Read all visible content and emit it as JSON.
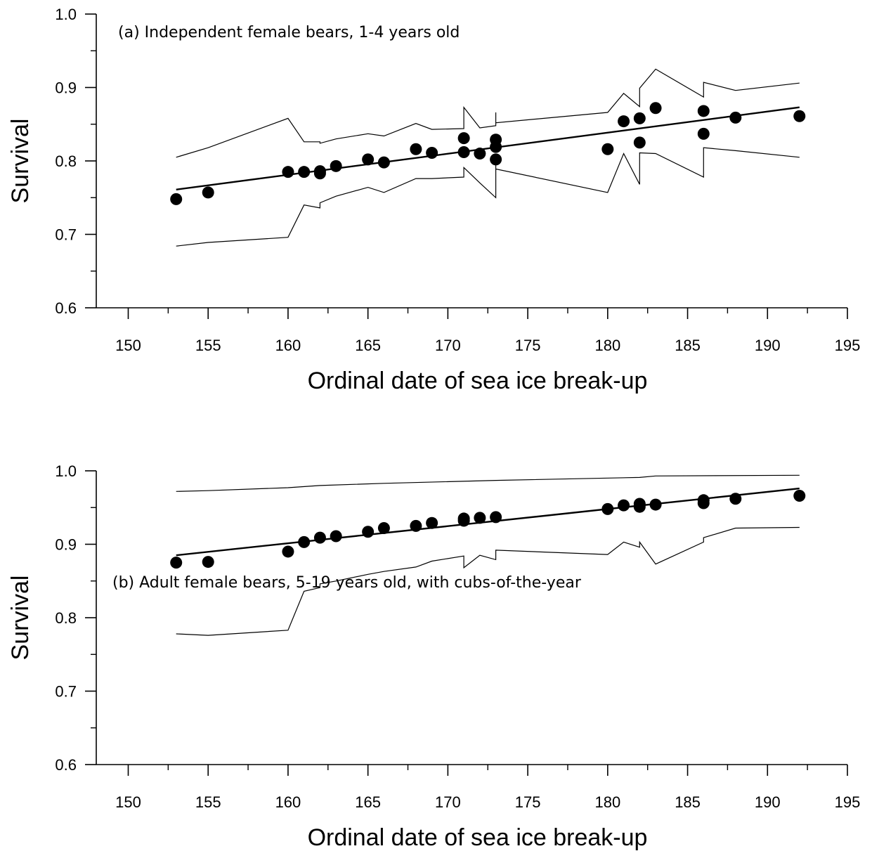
{
  "chart_data": [
    {
      "type": "scatter",
      "title": "(a) Independent female bears, 1-4 years old",
      "xlabel": "Ordinal date of sea ice break-up",
      "ylabel": "Survival",
      "xlim": [
        148,
        195
      ],
      "ylim": [
        0.6,
        1.0
      ],
      "xticks": [
        150,
        155,
        160,
        165,
        170,
        175,
        180,
        185,
        190,
        195
      ],
      "yticks": [
        "0.6",
        "0.7",
        "0.8",
        "0.9",
        "1.0"
      ],
      "grid": false,
      "points": {
        "x": [
          153,
          155,
          160,
          161,
          162,
          162,
          163,
          165,
          166,
          168,
          169,
          171,
          171,
          172,
          173,
          173,
          173,
          180,
          181,
          182,
          182,
          183,
          186,
          186,
          188,
          192
        ],
        "y": [
          0.748,
          0.757,
          0.785,
          0.785,
          0.786,
          0.783,
          0.793,
          0.802,
          0.798,
          0.816,
          0.811,
          0.831,
          0.812,
          0.81,
          0.829,
          0.819,
          0.802,
          0.816,
          0.854,
          0.858,
          0.825,
          0.872,
          0.868,
          0.837,
          0.859,
          0.861
        ]
      },
      "fit_line": {
        "x": [
          153,
          192
        ],
        "y": [
          0.761,
          0.873
        ]
      },
      "upper_bound": {
        "x": [
          153,
          155,
          160,
          161,
          162,
          162,
          163,
          165,
          166,
          168,
          169,
          171,
          171,
          172,
          173,
          173,
          173,
          180,
          181,
          182,
          182,
          183,
          186,
          186,
          188,
          192
        ],
        "y": [
          0.805,
          0.818,
          0.858,
          0.826,
          0.826,
          0.824,
          0.83,
          0.837,
          0.834,
          0.851,
          0.843,
          0.844,
          0.873,
          0.845,
          0.848,
          0.866,
          0.852,
          0.866,
          0.892,
          0.874,
          0.899,
          0.925,
          0.887,
          0.907,
          0.896,
          0.906
        ]
      },
      "lower_bound": {
        "x": [
          153,
          155,
          160,
          161,
          162,
          162,
          163,
          165,
          166,
          168,
          169,
          171,
          171,
          172,
          173,
          173,
          173,
          180,
          181,
          182,
          182,
          183,
          186,
          186,
          188,
          192
        ],
        "y": [
          0.684,
          0.689,
          0.696,
          0.74,
          0.736,
          0.743,
          0.752,
          0.764,
          0.757,
          0.776,
          0.776,
          0.778,
          0.791,
          0.77,
          0.75,
          0.796,
          0.789,
          0.757,
          0.81,
          0.768,
          0.811,
          0.81,
          0.778,
          0.818,
          0.814,
          0.805
        ]
      }
    },
    {
      "type": "scatter",
      "title": "(b) Adult female bears, 5-19 years old, with cubs-of-the-year",
      "xlabel": "Ordinal date of sea ice break-up",
      "ylabel": "Survival",
      "xlim": [
        148,
        195
      ],
      "ylim": [
        0.6,
        1.0
      ],
      "xticks": [
        150,
        155,
        160,
        165,
        170,
        175,
        180,
        185,
        190,
        195
      ],
      "yticks": [
        "0.6",
        "0.7",
        "0.8",
        "0.9",
        "1.0"
      ],
      "grid": false,
      "points": {
        "x": [
          153,
          155,
          160,
          161,
          162,
          163,
          165,
          166,
          168,
          169,
          171,
          171,
          172,
          173,
          180,
          181,
          182,
          182,
          183,
          186,
          186,
          188,
          192
        ],
        "y": [
          0.875,
          0.876,
          0.89,
          0.903,
          0.909,
          0.911,
          0.917,
          0.922,
          0.925,
          0.929,
          0.932,
          0.935,
          0.936,
          0.937,
          0.948,
          0.953,
          0.951,
          0.955,
          0.954,
          0.956,
          0.96,
          0.962,
          0.966
        ]
      },
      "fit_line": {
        "x": [
          153,
          192
        ],
        "y": [
          0.885,
          0.976
        ]
      },
      "upper_bound": {
        "x": [
          153,
          155,
          160,
          162,
          166,
          173,
          182,
          183,
          192
        ],
        "y": [
          0.972,
          0.973,
          0.977,
          0.98,
          0.983,
          0.987,
          0.991,
          0.993,
          0.994
        ]
      },
      "lower_bound": {
        "x": [
          153,
          155,
          160,
          161,
          162,
          162,
          163,
          165,
          166,
          168,
          169,
          171,
          171,
          172,
          173,
          173,
          180,
          181,
          182,
          182,
          183,
          186,
          186,
          188,
          192
        ],
        "y": [
          0.778,
          0.776,
          0.783,
          0.836,
          0.841,
          0.846,
          0.85,
          0.859,
          0.863,
          0.869,
          0.877,
          0.884,
          0.868,
          0.885,
          0.879,
          0.892,
          0.886,
          0.903,
          0.896,
          0.903,
          0.873,
          0.903,
          0.909,
          0.922,
          0.923
        ]
      }
    }
  ]
}
